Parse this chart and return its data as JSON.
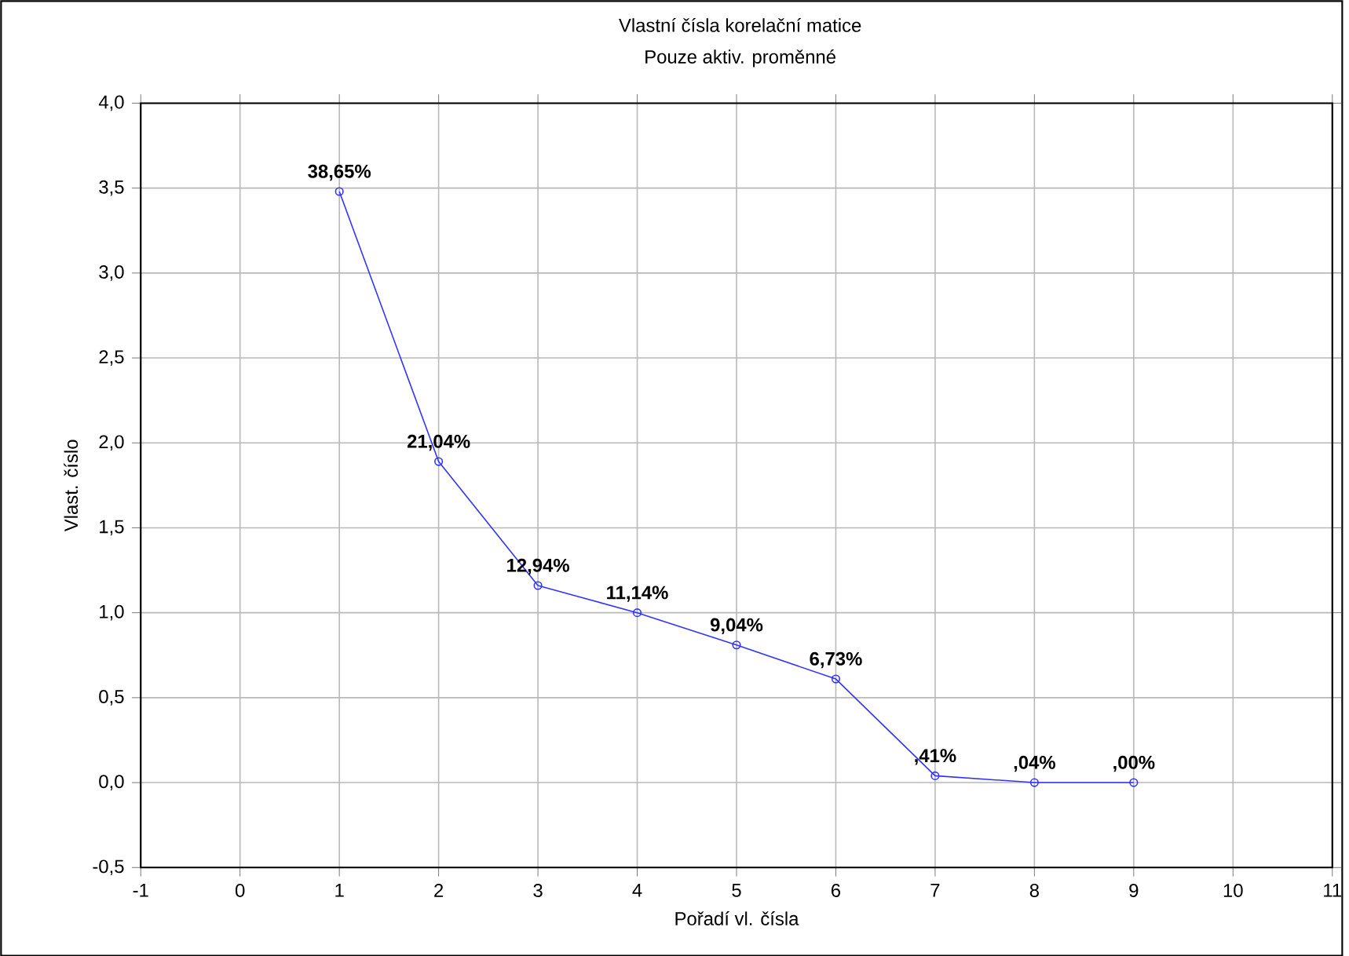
{
  "chart_data": {
    "type": "line",
    "title": "Vlastní čísla  korelační matice",
    "subtitle": "Pouze aktiv. proměnné",
    "xlabel": "Pořadí vl. čísla",
    "ylabel": "Vlast. číslo",
    "x": [
      1,
      2,
      3,
      4,
      5,
      6,
      7,
      8,
      9
    ],
    "series": [
      {
        "color": "#3333ff",
        "values": [
          3.48,
          1.89,
          1.16,
          1.0,
          0.81,
          0.61,
          0.04,
          0.0,
          0.0
        ]
      }
    ],
    "annotations": [
      {
        "text": "38,65%",
        "x": 1,
        "y": 3.48
      },
      {
        "text": "21,04%",
        "x": 2,
        "y": 1.89
      },
      {
        "text": "12,94%",
        "x": 3,
        "y": 1.16
      },
      {
        "text": "11,14%",
        "x": 4,
        "y": 1.0
      },
      {
        "text": "9,04%",
        "x": 5,
        "y": 0.81
      },
      {
        "text": "6,73%",
        "x": 6,
        "y": 0.61
      },
      {
        "text": ",41%",
        "x": 7,
        "y": 0.04
      },
      {
        "text": ",04%",
        "x": 8,
        "y": 0.0
      },
      {
        "text": ",00%",
        "x": 9,
        "y": 0.0
      }
    ],
    "xlim": [
      -1,
      11
    ],
    "xticks": [
      -1,
      0,
      1,
      2,
      3,
      4,
      5,
      6,
      7,
      8,
      9,
      10,
      11
    ],
    "ylim": [
      -0.5,
      4.0
    ],
    "yticks": [
      {
        "value": -0.5,
        "label": "-0,5"
      },
      {
        "value": 0,
        "label": "0,0"
      },
      {
        "value": 0.5,
        "label": "0,5"
      },
      {
        "value": 1.0,
        "label": "1,0"
      },
      {
        "value": 1.5,
        "label": "1,5"
      },
      {
        "value": 2.0,
        "label": "2,0"
      },
      {
        "value": 2.5,
        "label": "2,5"
      },
      {
        "value": 3.0,
        "label": "3,0"
      },
      {
        "value": 3.5,
        "label": "3,5"
      },
      {
        "value": 4.0,
        "label": "4,0"
      }
    ],
    "grid": true,
    "marker": "circle",
    "line_style": "solid"
  }
}
